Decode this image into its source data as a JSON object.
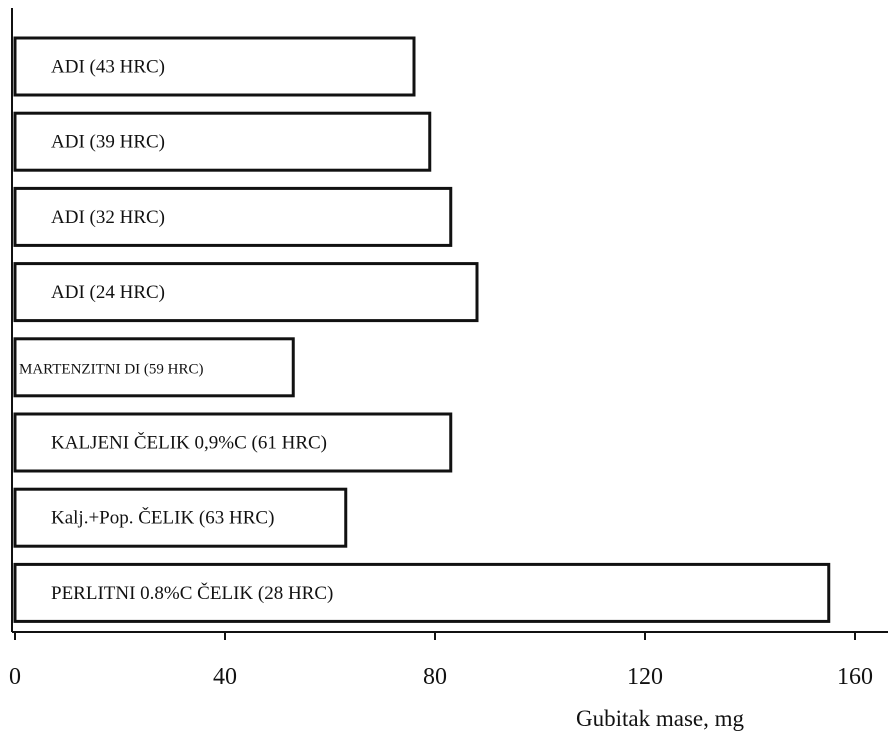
{
  "chart_data": {
    "type": "bar",
    "orientation": "horizontal",
    "title": "",
    "xlabel": "Gubitak mase, mg",
    "ylabel": "",
    "xlim": [
      0,
      160
    ],
    "xticks": [
      "0",
      "40",
      "80",
      "120",
      "160"
    ],
    "grid": false,
    "legend": "none",
    "bars": [
      {
        "label": "ADI (43  HRC)",
        "value": 76
      },
      {
        "label": "ADI (39 HRC)",
        "value": 79
      },
      {
        "label": "ADI (32 HRC)",
        "value": 83
      },
      {
        "label": "ADI (24 HRC)",
        "value": 88
      },
      {
        "label": "MARTENZITNI DI (59 HRC)",
        "value": 53
      },
      {
        "label": "KALJENI ČELIK 0,9%C  (61 HRC)",
        "value": 83
      },
      {
        "label": "Kalj.+Pop. ČELIK (63 HRC)",
        "value": 63
      },
      {
        "label": "PERLITNI 0.8%C ČELIK (28 HRC)",
        "value": 155
      }
    ],
    "colors": {
      "bar_fill": "#ffffff",
      "bar_stroke": "#111111",
      "axis": "#111111"
    }
  }
}
